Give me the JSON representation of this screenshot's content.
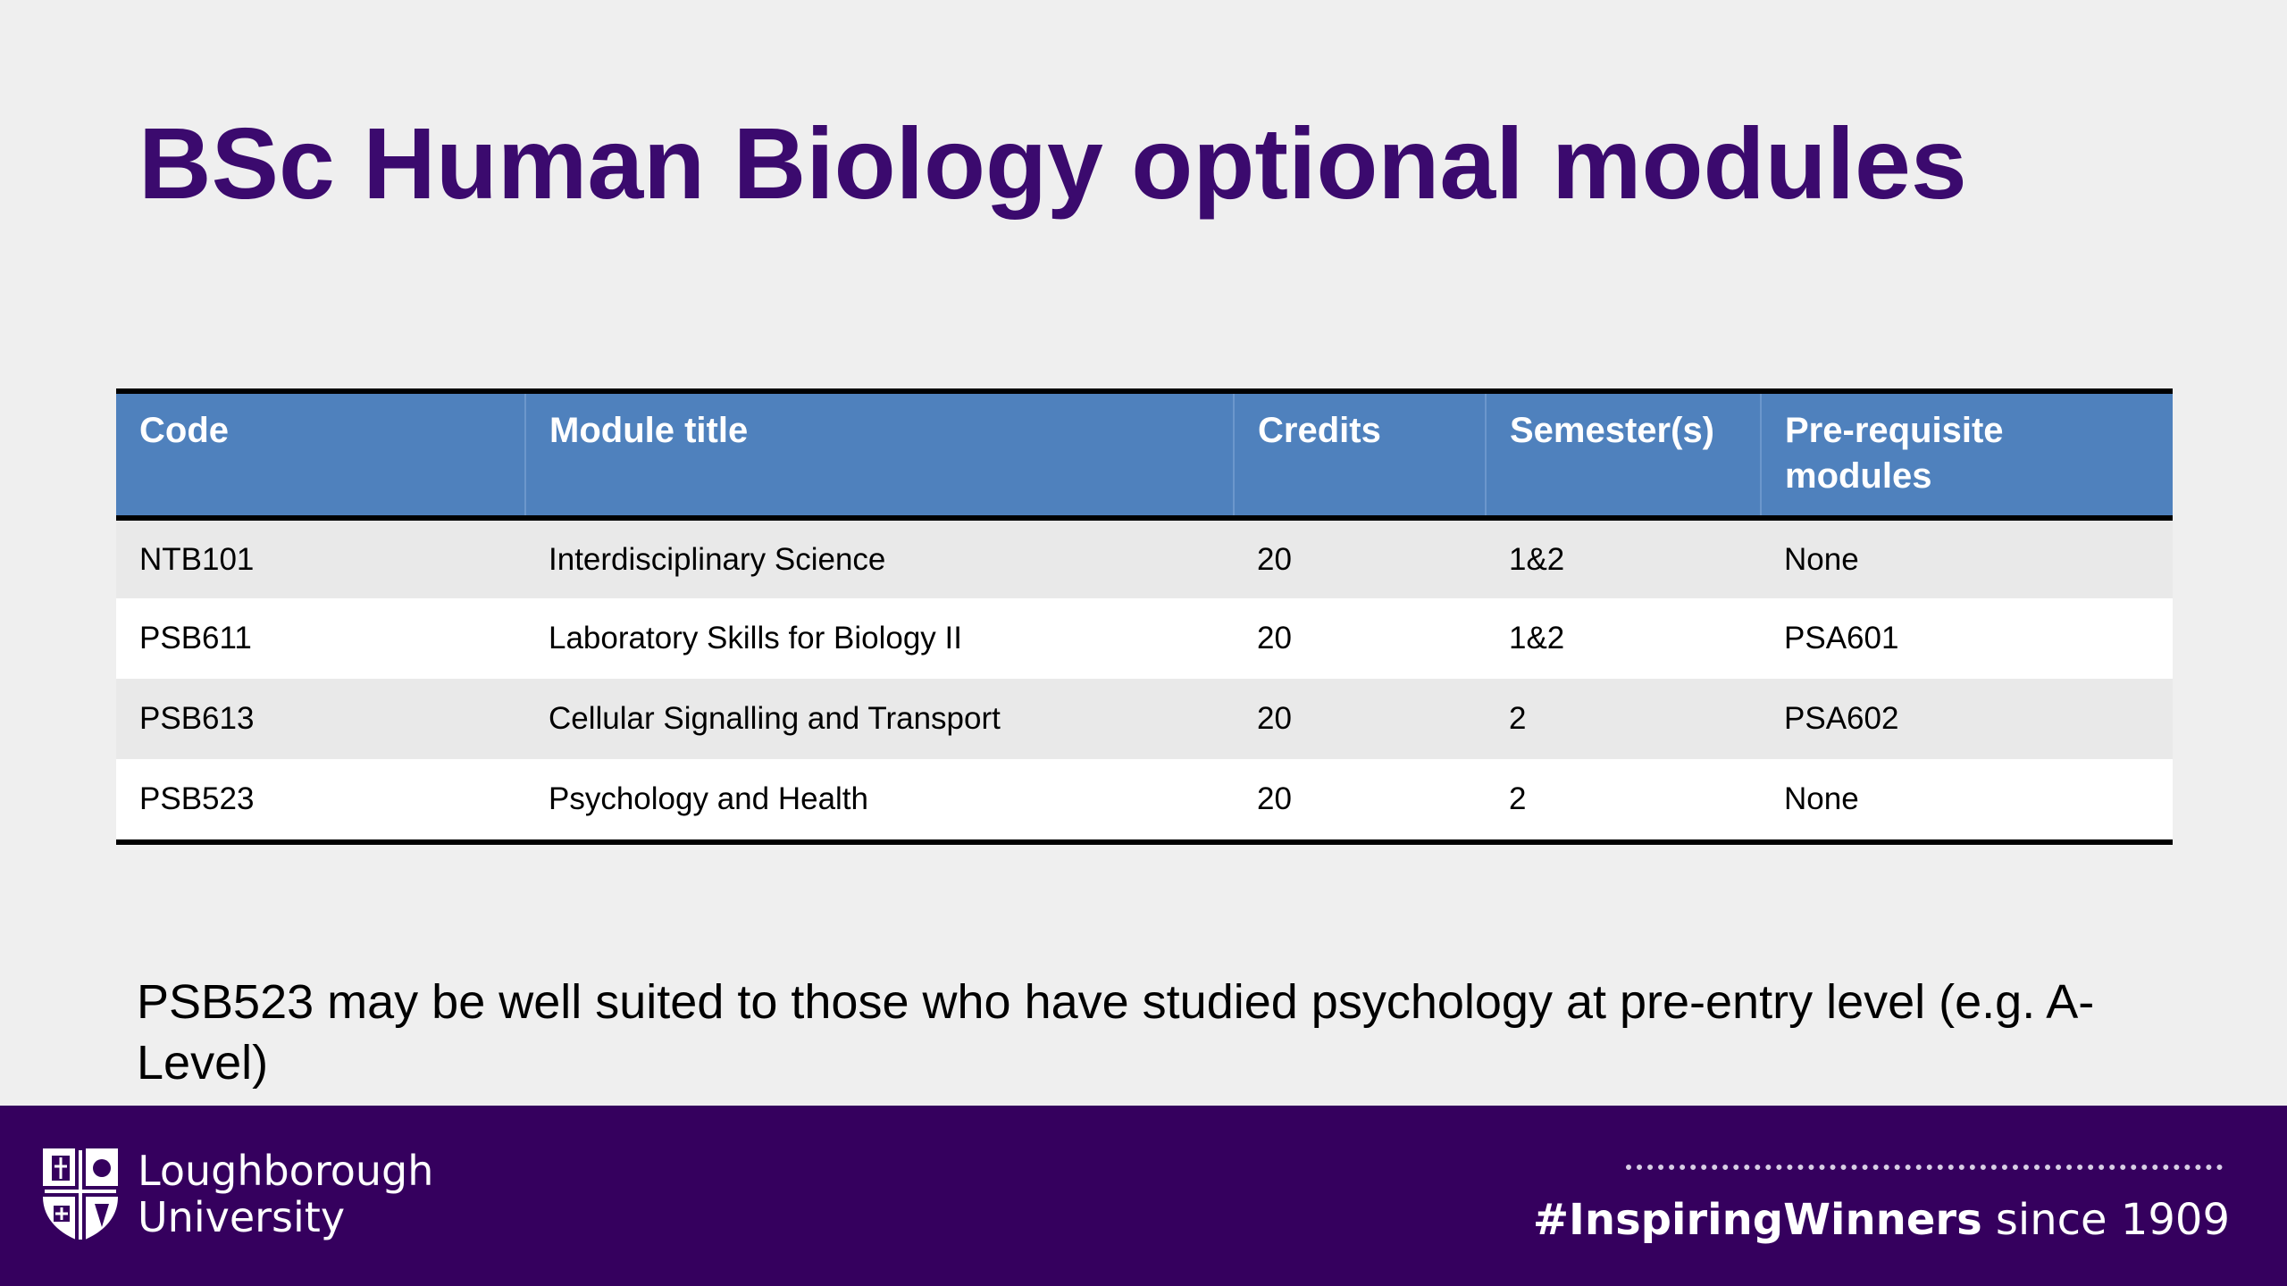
{
  "title": "BSc Human Biology optional modules",
  "table": {
    "headers": [
      "Code",
      "Module title",
      "Credits",
      "Semester(s)",
      "Pre-requisite modules"
    ],
    "rows": [
      [
        "NTB101",
        "Interdisciplinary Science",
        "20",
        "1&2",
        "None"
      ],
      [
        "PSB611",
        "Laboratory Skills for Biology II",
        "20",
        "1&2",
        "PSA601"
      ],
      [
        "PSB613",
        "Cellular Signalling and Transport",
        "20",
        "2",
        "PSA602"
      ],
      [
        "PSB523",
        "Psychology and Health",
        "20",
        "2",
        "None"
      ]
    ]
  },
  "note": "PSB523 may be well suited to those who have studied psychology at pre-entry level (e.g. A-Level)",
  "footer": {
    "logo_line1": "Loughborough",
    "logo_line2": "University",
    "tagline_hashtag": "#InspiringWinners",
    "tagline_rest": " since 1909",
    "crest_icon": "university-crest-icon"
  },
  "colors": {
    "title": "#3b0a6e",
    "header_bg": "#4f81bd",
    "footer_bg": "#35005e",
    "row_alt": "#e9e9e9"
  }
}
